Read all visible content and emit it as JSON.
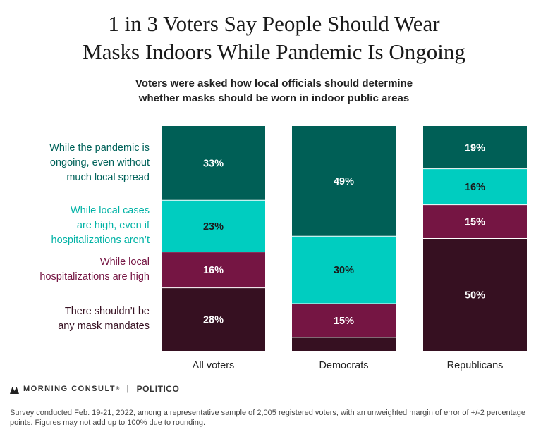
{
  "title_line1": "1 in 3 Voters Say People Should Wear",
  "title_line2": "Masks Indoors While Pandemic Is Ongoing",
  "subtitle_line1": "Voters were asked how local officials should determine",
  "subtitle_line2": "whether masks should be worn in indoor public areas",
  "chart_data": {
    "type": "bar",
    "stacked": true,
    "normalized": true,
    "categories": [
      "All voters",
      "Democrats",
      "Republicans"
    ],
    "series": [
      {
        "name": "While the pandemic is ongoing, even without much local spread",
        "values": [
          33,
          49,
          19
        ],
        "color": "#005f56"
      },
      {
        "name": "While local cases are high, even if hospitalizations aren’t",
        "values": [
          23,
          30,
          16
        ],
        "color": "#00cdc0"
      },
      {
        "name": "While local hospitalizations are high",
        "values": [
          16,
          15,
          15
        ],
        "color": "#751543"
      },
      {
        "name": "There shouldn’t be any mask mandates",
        "values": [
          28,
          6,
          50
        ],
        "color": "#361021"
      }
    ],
    "data_labels": [
      [
        "33%",
        "49%",
        "19%"
      ],
      [
        "23%",
        "30%",
        "16%"
      ],
      [
        "16%",
        "15%",
        "15%"
      ],
      [
        "28%",
        "",
        "50%"
      ]
    ],
    "legend_lines": [
      [
        "While the pandemic is",
        "ongoing, even without",
        "much local spread"
      ],
      [
        "While local cases",
        "are high, even if",
        "hospitalizations aren’t"
      ],
      [
        "While local",
        "hospitalizations are high"
      ],
      [
        "There shouldn’t be",
        "any mask mandates"
      ]
    ],
    "label_colors": [
      "#ffffff",
      "#1a1a1a",
      "#ffffff",
      "#ffffff"
    ],
    "legend_colors": [
      "#00625a",
      "#00b2a5",
      "#751543",
      "#361021"
    ],
    "legend_placement": "left",
    "grid": false
  },
  "brand": {
    "morning_consult": "MORNING CONSULT",
    "trademark": "®",
    "separator": "|",
    "politico": "POLITICO"
  },
  "note_line1": "Survey conducted Feb. 19-21, 2022, among a representative sample of 2,005 registered voters, with an unweighted margin of error of +/-2 percentage",
  "note_line2": "points. Figures may not add up to 100% due to rounding."
}
